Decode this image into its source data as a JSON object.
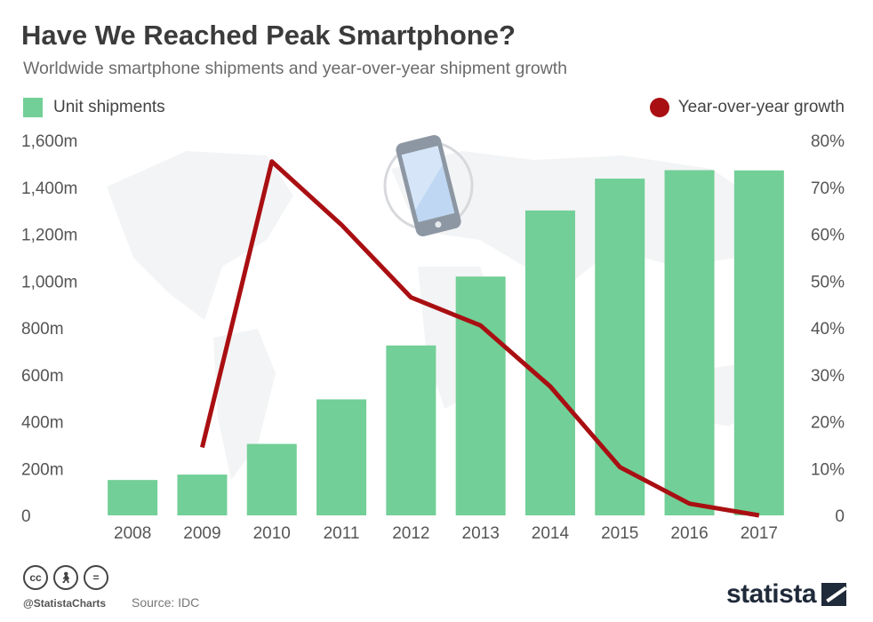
{
  "header": {
    "title": "Have We Reached Peak Smartphone?",
    "subtitle": "Worldwide smartphone shipments and year-over-year shipment growth"
  },
  "legend": {
    "bars_label": "Unit shipments",
    "line_label": "Year-over-year growth"
  },
  "colors": {
    "bar": "#72cf97",
    "line": "#a90f12",
    "axis_text": "#555555"
  },
  "footer": {
    "handle": "@StatistaCharts",
    "source": "Source: IDC",
    "brand": "statista",
    "license_icons": [
      "cc-icon",
      "attribution-icon",
      "no-derivatives-icon"
    ]
  },
  "chart_data": {
    "type": "bar",
    "categories": [
      "2008",
      "2009",
      "2010",
      "2011",
      "2012",
      "2013",
      "2014",
      "2015",
      "2016",
      "2017"
    ],
    "series": [
      {
        "name": "Unit shipments",
        "type": "bar",
        "axis": "left",
        "values": [
          151,
          174,
          305,
          495,
          725,
          1019,
          1301,
          1437,
          1473,
          1472
        ]
      },
      {
        "name": "Year-over-year growth",
        "type": "line",
        "axis": "right",
        "start_index": 1,
        "values": [
          null,
          14.5,
          75.5,
          62.0,
          46.5,
          40.5,
          27.5,
          10.3,
          2.5,
          -0.1
        ]
      }
    ],
    "left_axis": {
      "ticks": [
        0,
        200,
        400,
        600,
        800,
        1000,
        1200,
        1400,
        1600
      ],
      "tick_labels": [
        "0",
        "200m",
        "400m",
        "600m",
        "800m",
        "1,000m",
        "1,200m",
        "1,400m",
        "1,600m"
      ],
      "ylim": [
        0,
        1600
      ]
    },
    "right_axis": {
      "ticks": [
        0,
        10,
        20,
        30,
        40,
        50,
        60,
        70,
        80
      ],
      "tick_labels": [
        "0",
        "10%",
        "20%",
        "30%",
        "40%",
        "50%",
        "60%",
        "70%",
        "80%"
      ],
      "ylim": [
        0,
        80
      ]
    },
    "grid": false
  }
}
